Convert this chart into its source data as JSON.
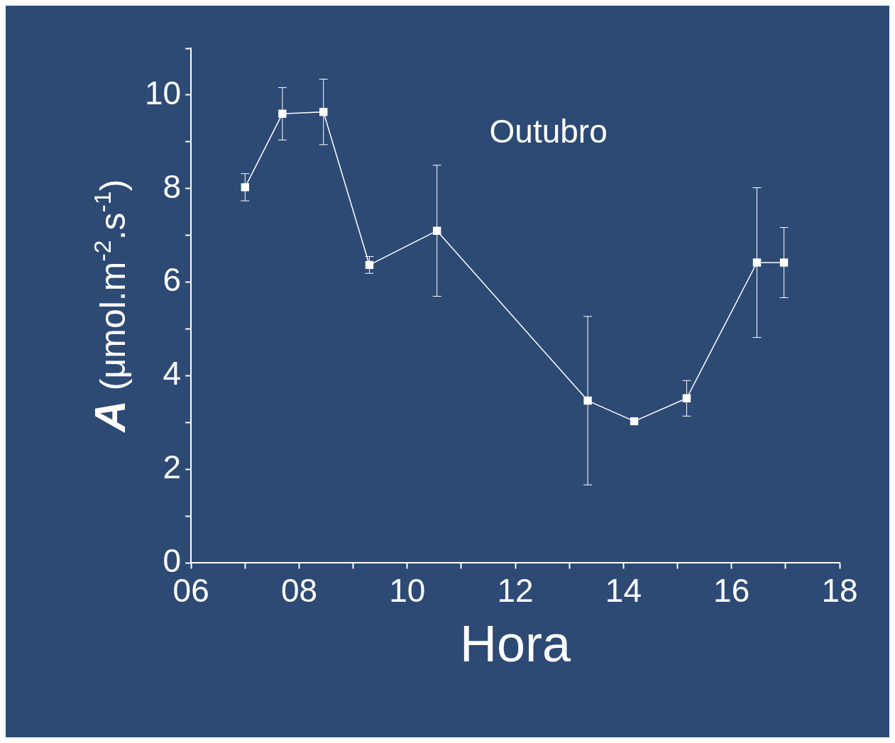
{
  "chart_data": {
    "type": "line",
    "xlabel": "Hora",
    "ylabel": "A (μmol.m$^{-2}$.s$^{-1}$)",
    "annotations": [
      "Outubro"
    ],
    "x": [
      7.0,
      7.69,
      8.45,
      9.3,
      10.55,
      13.34,
      14.2,
      15.17,
      16.47,
      16.97
    ],
    "series": [
      {
        "color": "#ffffff",
        "values": [
          8.03,
          9.6,
          9.64,
          6.37,
          7.1,
          3.47,
          3.03,
          3.52,
          6.42,
          6.42
        ],
        "errors": [
          0.29,
          0.56,
          0.7,
          0.18,
          1.4,
          1.8,
          null,
          0.38,
          1.6,
          0.75
        ]
      }
    ],
    "xlim": [
      6,
      18
    ],
    "xticks": [
      {
        "value": 6,
        "label": "06"
      },
      {
        "value": 7,
        "label": null
      },
      {
        "value": 8,
        "label": "08"
      },
      {
        "value": 9,
        "label": null
      },
      10,
      {
        "value": 11,
        "label": null
      },
      12,
      {
        "value": 13,
        "label": null
      },
      14,
      {
        "value": 15,
        "label": null
      },
      16,
      {
        "value": 17,
        "label": null
      },
      18
    ],
    "ylim": [
      0,
      11
    ],
    "yticks": [
      0,
      {
        "value": 1,
        "label": null
      },
      2,
      {
        "value": 3,
        "label": null
      },
      4,
      {
        "value": 5,
        "label": null
      },
      6,
      {
        "value": 7,
        "label": null
      },
      8,
      {
        "value": 9,
        "label": null
      },
      10,
      {
        "value": 11,
        "label": null
      }
    ],
    "grid": false,
    "marker": "square",
    "line_style": "solid",
    "legend": false
  }
}
